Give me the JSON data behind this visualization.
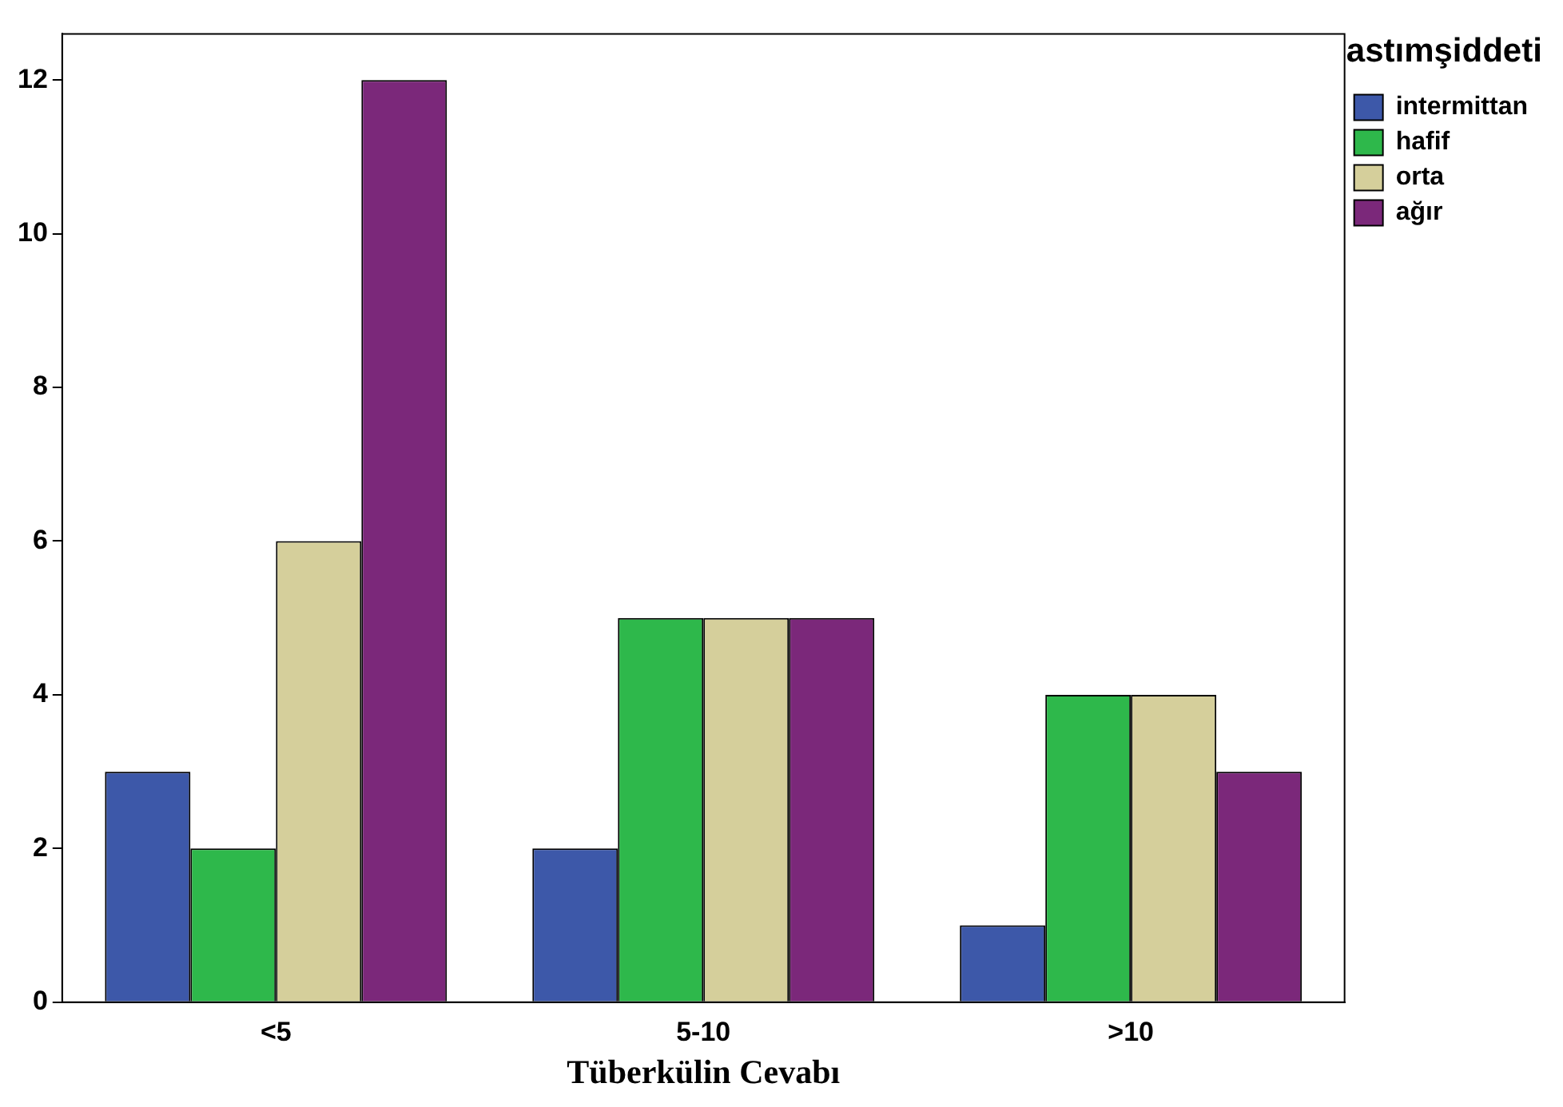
{
  "chart_data": {
    "type": "bar",
    "xlabel": "Tüberkülin Cevabı",
    "legend_title": "astımşiddeti",
    "categories": [
      "<5",
      "5-10",
      ">10"
    ],
    "series": [
      {
        "name": "intermittan",
        "color": "#3d58a9",
        "values": [
          3,
          2,
          1
        ]
      },
      {
        "name": "hafif",
        "color": "#2eb84b",
        "values": [
          2,
          5,
          4
        ]
      },
      {
        "name": "orta",
        "color": "#d5cf9b",
        "values": [
          6,
          5,
          4
        ]
      },
      {
        "name": "ağır",
        "color": "#7b287a",
        "values": [
          12,
          5,
          3
        ]
      }
    ],
    "ylim": [
      0,
      12.6
    ],
    "yticks": [
      0,
      2,
      4,
      6,
      8,
      10,
      12
    ],
    "grid": false,
    "legend": "top right"
  }
}
